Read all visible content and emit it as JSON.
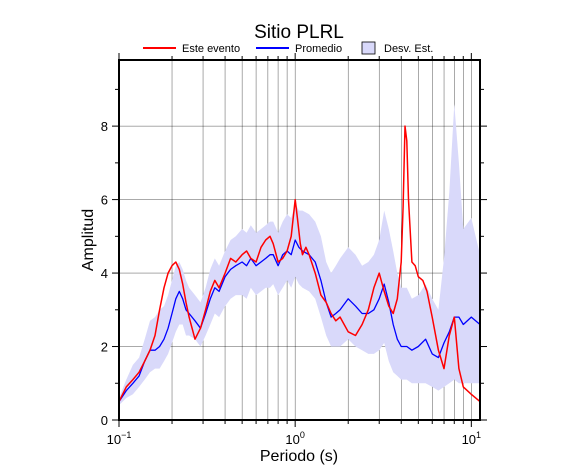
{
  "chart_data": {
    "type": "line",
    "title": "Sitio PLRL",
    "xlabel": "Periodo (s)",
    "ylabel": "Amplitud",
    "xscale": "log",
    "xlim": [
      0.1,
      11.2
    ],
    "ylim": [
      0,
      9.8
    ],
    "grid": "vertical log grid plus horizontal lines at labeled y ticks",
    "legend_position": "top",
    "x_ticks": [
      {
        "value": 0.1,
        "base": "10",
        "exp": "−1"
      },
      {
        "value": 1,
        "base": "10",
        "exp": "0"
      },
      {
        "value": 10,
        "base": "10",
        "exp": "1"
      }
    ],
    "y_ticks": [
      0,
      2,
      4,
      6,
      8
    ],
    "legend": [
      {
        "label": "Este evento",
        "kind": "line",
        "color": "#ff0000"
      },
      {
        "label": "Promedio",
        "kind": "line",
        "color": "#0000ff"
      },
      {
        "label": "Desv. Est.",
        "kind": "band",
        "color": "#d9d9fa"
      }
    ],
    "series": [
      {
        "name": "Este evento",
        "color": "#ff0000",
        "x": [
          0.1,
          0.11,
          0.12,
          0.13,
          0.14,
          0.15,
          0.16,
          0.17,
          0.18,
          0.19,
          0.2,
          0.21,
          0.22,
          0.23,
          0.24,
          0.25,
          0.27,
          0.29,
          0.31,
          0.33,
          0.35,
          0.37,
          0.4,
          0.43,
          0.46,
          0.5,
          0.53,
          0.56,
          0.6,
          0.64,
          0.68,
          0.72,
          0.75,
          0.8,
          0.85,
          0.9,
          0.95,
          1.0,
          1.03,
          1.07,
          1.1,
          1.15,
          1.2,
          1.3,
          1.4,
          1.5,
          1.6,
          1.7,
          1.8,
          2.0,
          2.2,
          2.4,
          2.6,
          2.8,
          3.0,
          3.2,
          3.4,
          3.6,
          3.8,
          4.0,
          4.1,
          4.2,
          4.3,
          4.4,
          4.6,
          4.8,
          5.0,
          5.3,
          5.6,
          6.0,
          6.5,
          7.0,
          7.5,
          8.0,
          8.5,
          9.0,
          10.0,
          11.2
        ],
        "y": [
          0.5,
          0.9,
          1.1,
          1.3,
          1.6,
          1.9,
          2.3,
          3.0,
          3.6,
          4.0,
          4.2,
          4.3,
          4.1,
          3.7,
          3.2,
          2.8,
          2.2,
          2.5,
          3.0,
          3.5,
          3.8,
          3.6,
          4.0,
          4.4,
          4.3,
          4.5,
          4.6,
          4.4,
          4.3,
          4.7,
          4.9,
          5.0,
          4.8,
          4.3,
          4.4,
          4.6,
          5.0,
          6.0,
          5.5,
          4.8,
          4.5,
          4.7,
          4.5,
          4.0,
          3.4,
          3.2,
          2.9,
          2.7,
          2.8,
          2.4,
          2.3,
          2.6,
          3.0,
          3.6,
          4.0,
          3.5,
          3.1,
          2.9,
          3.3,
          4.3,
          5.8,
          8.0,
          7.6,
          6.0,
          4.3,
          4.2,
          3.9,
          3.8,
          3.5,
          2.8,
          1.9,
          1.4,
          2.3,
          2.8,
          1.4,
          0.9,
          0.7,
          0.5
        ]
      },
      {
        "name": "Promedio",
        "color": "#0000ff",
        "x": [
          0.1,
          0.11,
          0.12,
          0.13,
          0.14,
          0.15,
          0.16,
          0.17,
          0.18,
          0.19,
          0.2,
          0.21,
          0.22,
          0.23,
          0.24,
          0.25,
          0.27,
          0.29,
          0.31,
          0.33,
          0.35,
          0.37,
          0.4,
          0.43,
          0.46,
          0.5,
          0.53,
          0.56,
          0.6,
          0.64,
          0.68,
          0.72,
          0.75,
          0.8,
          0.85,
          0.9,
          0.95,
          1.0,
          1.05,
          1.1,
          1.2,
          1.3,
          1.4,
          1.5,
          1.6,
          1.7,
          1.8,
          2.0,
          2.2,
          2.4,
          2.6,
          2.8,
          3.0,
          3.2,
          3.4,
          3.6,
          3.8,
          4.0,
          4.3,
          4.6,
          5.0,
          5.5,
          6.0,
          6.5,
          7.0,
          7.5,
          8.0,
          8.5,
          9.0,
          10.0,
          11.2
        ],
        "y": [
          0.5,
          0.8,
          1.0,
          1.2,
          1.6,
          1.9,
          1.9,
          2.0,
          2.2,
          2.5,
          2.9,
          3.3,
          3.5,
          3.3,
          3.0,
          2.9,
          2.7,
          2.5,
          2.9,
          3.3,
          3.6,
          3.5,
          3.9,
          4.1,
          4.2,
          4.3,
          4.2,
          4.4,
          4.2,
          4.3,
          4.4,
          4.5,
          4.5,
          4.2,
          4.5,
          4.6,
          4.5,
          4.9,
          4.7,
          4.6,
          4.5,
          4.3,
          3.8,
          3.2,
          2.8,
          2.9,
          3.0,
          3.3,
          3.1,
          2.9,
          2.9,
          3.0,
          3.3,
          3.7,
          3.2,
          2.6,
          2.2,
          2.0,
          2.0,
          1.9,
          2.0,
          2.2,
          1.8,
          1.7,
          2.1,
          2.4,
          2.8,
          2.8,
          2.6,
          2.8,
          2.6
        ]
      }
    ],
    "band": {
      "name": "Desv. Est.",
      "color": "#d9d9fa",
      "x": [
        0.1,
        0.11,
        0.12,
        0.13,
        0.14,
        0.15,
        0.16,
        0.17,
        0.18,
        0.19,
        0.2,
        0.21,
        0.22,
        0.23,
        0.24,
        0.25,
        0.27,
        0.29,
        0.31,
        0.33,
        0.35,
        0.37,
        0.4,
        0.43,
        0.46,
        0.5,
        0.53,
        0.56,
        0.6,
        0.64,
        0.68,
        0.72,
        0.75,
        0.8,
        0.85,
        0.9,
        0.95,
        1.0,
        1.05,
        1.1,
        1.2,
        1.3,
        1.4,
        1.5,
        1.6,
        1.7,
        1.8,
        2.0,
        2.2,
        2.4,
        2.6,
        2.8,
        3.0,
        3.2,
        3.4,
        3.6,
        3.8,
        4.0,
        4.3,
        4.6,
        5.0,
        5.5,
        6.0,
        6.5,
        7.0,
        7.5,
        8.0,
        8.5,
        9.0,
        10.0,
        11.2
      ],
      "lower": [
        0.4,
        0.6,
        0.7,
        0.9,
        1.1,
        1.3,
        1.4,
        1.4,
        1.6,
        1.8,
        2.1,
        2.4,
        2.6,
        2.6,
        2.3,
        2.3,
        2.2,
        2.0,
        2.3,
        2.6,
        2.9,
        2.8,
        3.1,
        3.3,
        3.4,
        3.4,
        3.3,
        3.6,
        3.4,
        3.5,
        3.6,
        3.6,
        3.7,
        3.4,
        3.6,
        3.8,
        3.6,
        3.9,
        3.7,
        3.6,
        3.5,
        3.3,
        2.8,
        2.3,
        2.0,
        2.0,
        2.0,
        2.2,
        2.0,
        1.9,
        1.8,
        1.8,
        1.9,
        2.1,
        1.6,
        1.3,
        1.2,
        1.1,
        1.1,
        1.0,
        1.0,
        1.0,
        0.9,
        0.8,
        0.9,
        1.0,
        1.1,
        1.0,
        1.0,
        1.0,
        1.0
      ],
      "upper": [
        0.6,
        1.1,
        1.5,
        1.7,
        2.2,
        2.7,
        2.8,
        3.0,
        3.1,
        3.4,
        3.8,
        4.2,
        4.3,
        4.1,
        3.8,
        3.6,
        3.4,
        3.2,
        3.6,
        4.1,
        4.4,
        4.2,
        4.6,
        4.9,
        5.0,
        5.2,
        5.1,
        5.3,
        5.1,
        5.2,
        5.3,
        5.4,
        5.4,
        5.1,
        5.4,
        5.6,
        5.5,
        5.9,
        5.7,
        5.7,
        5.6,
        5.4,
        5.0,
        4.3,
        4.0,
        4.2,
        4.4,
        4.7,
        4.5,
        4.2,
        4.3,
        4.5,
        4.9,
        5.7,
        5.2,
        4.6,
        4.0,
        3.6,
        3.6,
        3.3,
        3.4,
        3.7,
        3.3,
        3.0,
        4.4,
        6.2,
        8.6,
        7.0,
        5.2,
        5.5,
        4.5
      ]
    }
  }
}
